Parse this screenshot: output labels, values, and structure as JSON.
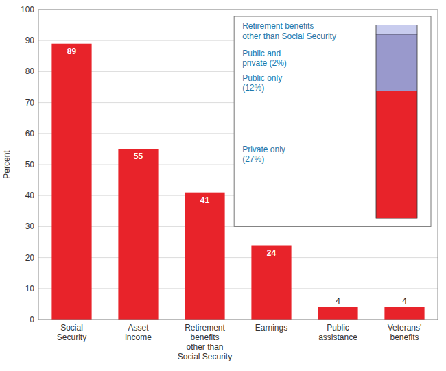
{
  "chart_data": [
    {
      "type": "bar",
      "categories": [
        "Social\nSecurity",
        "Asset\nincome",
        "Retirement\nbenefits\nother than\nSocial Security",
        "Earnings",
        "Public\nassistance",
        "Veterans'\nbenefits"
      ],
      "values": [
        89,
        55,
        41,
        24,
        4,
        4
      ],
      "color": "#e8232a",
      "ylabel": "Percent",
      "ylim": [
        0,
        100
      ],
      "yticks": [
        0,
        10,
        20,
        30,
        40,
        50,
        60,
        70,
        80,
        90,
        100
      ],
      "grid": true,
      "data_labels": true
    },
    {
      "type": "bar",
      "stacked": true,
      "title": "Retirement benefits\nother than Social Security",
      "series": [
        {
          "name": "Public and\nprivate (2%)",
          "color": "#c8ccee",
          "values": [
            2
          ]
        },
        {
          "name": "Public only\n(12%)",
          "color": "#9999cc",
          "values": [
            12
          ]
        },
        {
          "name": "Private only\n(27%)",
          "color": "#e8232a",
          "values": [
            27
          ]
        }
      ],
      "ylim": [
        0,
        41
      ],
      "tick_labels": false,
      "legend": "left"
    }
  ]
}
